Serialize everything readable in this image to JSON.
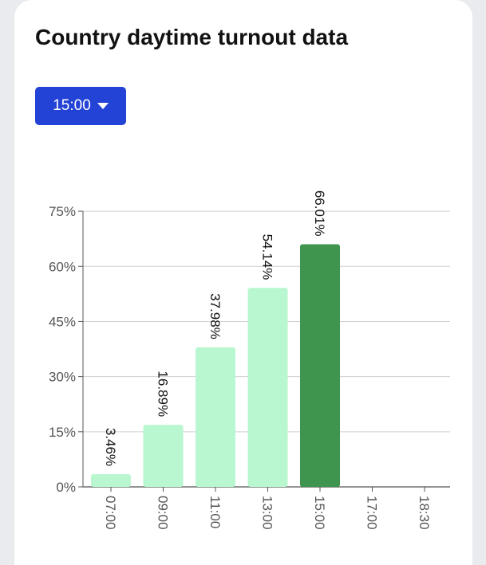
{
  "title": "Country daytime turnout data",
  "dropdown": {
    "selected": "15:00",
    "icon": "caret-down-icon"
  },
  "colors": {
    "bar_default": "#b8f7cf",
    "bar_selected": "#3f954d",
    "dropdown_bg": "#2343d6"
  },
  "chart_data": {
    "type": "bar",
    "categories": [
      "07:00",
      "09:00",
      "11:00",
      "13:00",
      "15:00",
      "17:00",
      "18:30"
    ],
    "values": [
      3.46,
      16.89,
      37.98,
      54.14,
      66.01,
      null,
      null
    ],
    "data_labels": [
      "3.46%",
      "16.89%",
      "37.98%",
      "54.14%",
      "66.01%",
      "",
      ""
    ],
    "highlighted_category": "15:00",
    "y_ticks": [
      0,
      15,
      30,
      45,
      60,
      75
    ],
    "y_tick_labels": [
      "0%",
      "15%",
      "30%",
      "45%",
      "60%",
      "75%"
    ],
    "ylim": [
      0,
      80
    ],
    "xlabel": "",
    "ylabel": "",
    "grid": true
  }
}
